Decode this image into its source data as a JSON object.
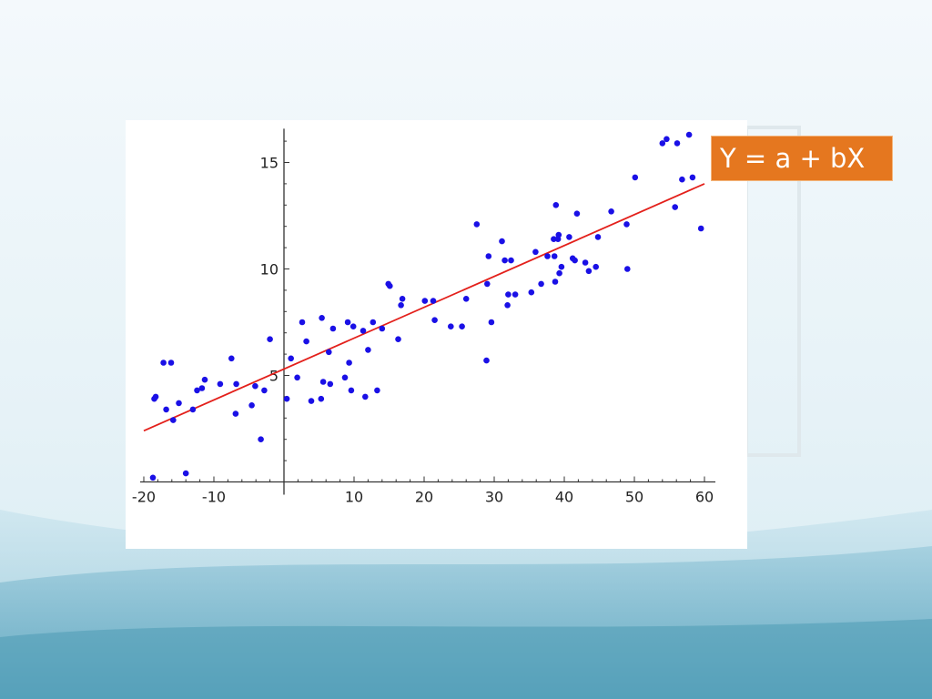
{
  "slide": {
    "formula": "Y = a + bX",
    "colors": {
      "background_light": "#eef6fa",
      "wave_light": "#bcdde8",
      "wave_dark": "#5ea8c1",
      "formula_box": "#e5771f",
      "points": "#1a10e6",
      "regression_line": "#e3201b"
    }
  },
  "chart_data": {
    "type": "scatter",
    "xlim": [
      -20,
      60
    ],
    "ylim": [
      0,
      16.5
    ],
    "x_ticks": [
      -20,
      -10,
      10,
      20,
      30,
      40,
      50,
      60
    ],
    "y_ticks": [
      5,
      10,
      15
    ],
    "grid": false,
    "axes": "through-origin",
    "trend_line": {
      "x": [
        -20,
        60
      ],
      "y": [
        2.4,
        14.0
      ]
    },
    "points": [
      [
        -18.7,
        0.2
      ],
      [
        -18.5,
        3.9
      ],
      [
        -18.3,
        4.0
      ],
      [
        -17.2,
        5.6
      ],
      [
        -16.8,
        3.4
      ],
      [
        -16.1,
        5.6
      ],
      [
        -15.8,
        2.9
      ],
      [
        -15.0,
        3.7
      ],
      [
        -14.0,
        0.4
      ],
      [
        -13.0,
        3.4
      ],
      [
        -12.4,
        4.3
      ],
      [
        -11.7,
        4.4
      ],
      [
        -11.3,
        4.8
      ],
      [
        -9.1,
        4.6
      ],
      [
        -7.5,
        5.8
      ],
      [
        -6.9,
        3.2
      ],
      [
        -6.8,
        4.6
      ],
      [
        -4.6,
        3.6
      ],
      [
        -4.1,
        4.5
      ],
      [
        -3.3,
        2.0
      ],
      [
        -2.8,
        4.3
      ],
      [
        -2.0,
        6.7
      ],
      [
        0.4,
        3.9
      ],
      [
        1.0,
        5.8
      ],
      [
        1.9,
        4.9
      ],
      [
        2.6,
        7.5
      ],
      [
        3.2,
        6.6
      ],
      [
        3.9,
        3.8
      ],
      [
        5.3,
        3.9
      ],
      [
        5.4,
        7.7
      ],
      [
        5.6,
        4.7
      ],
      [
        6.4,
        6.1
      ],
      [
        6.6,
        4.6
      ],
      [
        7.0,
        7.2
      ],
      [
        8.7,
        4.9
      ],
      [
        9.1,
        7.5
      ],
      [
        9.3,
        5.6
      ],
      [
        9.6,
        4.3
      ],
      [
        9.9,
        7.3
      ],
      [
        11.3,
        7.1
      ],
      [
        11.6,
        4.0
      ],
      [
        12.0,
        6.2
      ],
      [
        12.7,
        7.5
      ],
      [
        13.3,
        4.3
      ],
      [
        14.0,
        7.2
      ],
      [
        14.9,
        9.3
      ],
      [
        15.1,
        9.2
      ],
      [
        16.3,
        6.7
      ],
      [
        16.7,
        8.3
      ],
      [
        16.9,
        8.6
      ],
      [
        20.1,
        8.5
      ],
      [
        21.3,
        8.5
      ],
      [
        21.5,
        7.6
      ],
      [
        23.8,
        7.3
      ],
      [
        25.4,
        7.3
      ],
      [
        26.0,
        8.6
      ],
      [
        27.5,
        12.1
      ],
      [
        28.9,
        5.7
      ],
      [
        29.0,
        9.3
      ],
      [
        29.2,
        10.6
      ],
      [
        29.6,
        7.5
      ],
      [
        31.1,
        11.3
      ],
      [
        31.5,
        10.4
      ],
      [
        31.9,
        8.3
      ],
      [
        32.0,
        8.8
      ],
      [
        32.4,
        10.4
      ],
      [
        33.0,
        8.8
      ],
      [
        35.3,
        8.9
      ],
      [
        35.9,
        10.8
      ],
      [
        36.7,
        9.3
      ],
      [
        37.6,
        10.6
      ],
      [
        38.5,
        11.4
      ],
      [
        38.6,
        10.6
      ],
      [
        38.7,
        9.4
      ],
      [
        38.8,
        13.0
      ],
      [
        39.1,
        11.4
      ],
      [
        39.2,
        11.6
      ],
      [
        39.3,
        9.8
      ],
      [
        39.6,
        10.1
      ],
      [
        40.7,
        11.5
      ],
      [
        41.2,
        10.5
      ],
      [
        41.5,
        10.4
      ],
      [
        41.8,
        12.6
      ],
      [
        43.0,
        10.3
      ],
      [
        43.5,
        9.9
      ],
      [
        44.5,
        10.1
      ],
      [
        44.8,
        11.5
      ],
      [
        46.7,
        12.7
      ],
      [
        48.9,
        12.1
      ],
      [
        49.0,
        10.0
      ],
      [
        50.1,
        14.3
      ],
      [
        54.0,
        15.9
      ],
      [
        54.6,
        16.1
      ],
      [
        55.8,
        12.9
      ],
      [
        56.1,
        15.9
      ],
      [
        56.8,
        14.2
      ],
      [
        57.8,
        16.3
      ],
      [
        58.3,
        14.3
      ],
      [
        59.5,
        11.9
      ]
    ]
  }
}
